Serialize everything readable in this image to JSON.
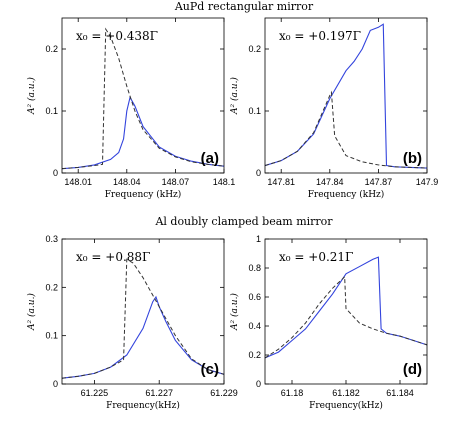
{
  "section_titles": {
    "top": "AuPd rectangular mirror",
    "bottom": "Al doubly clamped beam mirror"
  },
  "chart_data": [
    {
      "id": "a",
      "type": "line",
      "panel_label": "(a)",
      "annotation": "x₀ = +0.438Γ",
      "xlabel": "Frequency (kHz)",
      "ylabel": "A² (a.u.)",
      "xlim": [
        148.0,
        148.1
      ],
      "ylim": [
        0,
        0.25
      ],
      "xticks": [
        148.01,
        148.04,
        148.07,
        148.1
      ],
      "xtick_labels": [
        "148.01",
        "148.04",
        "148.07",
        "148.1"
      ],
      "yticks": [
        0,
        0.1,
        0.2
      ],
      "ytick_labels": [
        "0",
        "0.1",
        "0.2"
      ],
      "series": [
        {
          "style": "solid",
          "color": "#3344dd",
          "x": [
            148.0,
            148.01,
            148.02,
            148.03,
            148.035,
            148.038,
            148.04,
            148.042,
            148.045,
            148.05,
            148.06,
            148.07,
            148.08,
            148.09,
            148.1
          ],
          "y": [
            0.007,
            0.009,
            0.013,
            0.022,
            0.033,
            0.055,
            0.1,
            0.122,
            0.108,
            0.075,
            0.042,
            0.027,
            0.019,
            0.014,
            0.011
          ]
        },
        {
          "style": "dashed",
          "color": "#333333",
          "x": [
            148.0,
            148.01,
            148.02,
            148.025,
            148.027,
            148.03,
            148.035,
            148.04,
            148.045,
            148.05,
            148.06,
            148.07,
            148.08,
            148.09,
            148.1
          ],
          "y": [
            0.007,
            0.009,
            0.012,
            0.014,
            0.232,
            0.22,
            0.185,
            0.14,
            0.1,
            0.07,
            0.04,
            0.026,
            0.018,
            0.014,
            0.011
          ]
        }
      ]
    },
    {
      "id": "b",
      "type": "line",
      "panel_label": "(b)",
      "annotation": "x₀ = +0.197Γ",
      "xlabel": "Frequency (kHz)",
      "ylabel": "A² (a.u.)",
      "xlim": [
        147.8,
        147.9
      ],
      "ylim": [
        0,
        0.25
      ],
      "xticks": [
        147.81,
        147.84,
        147.87,
        147.9
      ],
      "xtick_labels": [
        "147.81",
        "147.84",
        "147.87",
        "147.9"
      ],
      "yticks": [
        0,
        0.1,
        0.2
      ],
      "ytick_labels": [
        "0",
        "0.1",
        "0.2"
      ],
      "series": [
        {
          "style": "solid",
          "color": "#3344dd",
          "x": [
            147.8,
            147.81,
            147.82,
            147.83,
            147.84,
            147.85,
            147.855,
            147.86,
            147.865,
            147.87,
            147.873,
            147.875,
            147.88,
            147.89,
            147.9
          ],
          "y": [
            0.012,
            0.02,
            0.035,
            0.063,
            0.12,
            0.165,
            0.18,
            0.2,
            0.23,
            0.235,
            0.24,
            0.012,
            0.01,
            0.009,
            0.008
          ]
        },
        {
          "style": "dashed",
          "color": "#333333",
          "x": [
            147.8,
            147.81,
            147.82,
            147.83,
            147.84,
            147.841,
            147.843,
            147.85,
            147.86,
            147.87,
            147.88,
            147.9
          ],
          "y": [
            0.012,
            0.02,
            0.035,
            0.065,
            0.125,
            0.13,
            0.06,
            0.028,
            0.018,
            0.013,
            0.01,
            0.008
          ]
        }
      ]
    },
    {
      "id": "c",
      "type": "line",
      "panel_label": "(c)",
      "annotation": "x₀ = +0.88Γ",
      "xlabel": "Frequency(kHz)",
      "ylabel": "A² (a.u.)",
      "xlim": [
        61.224,
        61.229
      ],
      "ylim": [
        0,
        0.3
      ],
      "xticks": [
        61.225,
        61.227,
        61.229
      ],
      "xtick_labels": [
        "61.225",
        "61.227",
        "61.229"
      ],
      "yticks": [
        0,
        0.1,
        0.2,
        0.3
      ],
      "ytick_labels": [
        "0",
        "0.1",
        "0.2",
        "0.3"
      ],
      "series": [
        {
          "style": "solid",
          "color": "#3344dd",
          "x": [
            61.224,
            61.2245,
            61.225,
            61.2255,
            61.226,
            61.2265,
            61.2268,
            61.2269,
            61.227,
            61.2272,
            61.2275,
            61.228,
            61.2285,
            61.229
          ],
          "y": [
            0.012,
            0.016,
            0.022,
            0.035,
            0.06,
            0.115,
            0.17,
            0.18,
            0.16,
            0.13,
            0.09,
            0.05,
            0.03,
            0.02
          ]
        },
        {
          "style": "dashed",
          "color": "#333333",
          "x": [
            61.224,
            61.2245,
            61.225,
            61.2255,
            61.2259,
            61.226,
            61.2262,
            61.2265,
            61.227,
            61.2275,
            61.228,
            61.2285,
            61.229
          ],
          "y": [
            0.012,
            0.016,
            0.022,
            0.035,
            0.05,
            0.258,
            0.25,
            0.22,
            0.16,
            0.1,
            0.052,
            0.03,
            0.02
          ]
        }
      ]
    },
    {
      "id": "d",
      "type": "line",
      "panel_label": "(d)",
      "annotation": "x₀ = +0.21Γ",
      "xlabel": "Frequency(kHz)",
      "ylabel": "A² (a.u.)",
      "xlim": [
        61.179,
        61.185
      ],
      "ylim": [
        0,
        1
      ],
      "xticks": [
        61.18,
        61.182,
        61.184
      ],
      "xtick_labels": [
        "61.18",
        "61.182",
        "61.184"
      ],
      "yticks": [
        0,
        0.2,
        0.4,
        0.6,
        0.8,
        1
      ],
      "ytick_labels": [
        "0",
        "0.2",
        "0.4",
        "0.6",
        "0.8",
        "1"
      ],
      "series": [
        {
          "style": "solid",
          "color": "#3344dd",
          "x": [
            61.179,
            61.1795,
            61.18,
            61.1805,
            61.181,
            61.1815,
            61.182,
            61.1825,
            61.183,
            61.1832,
            61.1833,
            61.1835,
            61.184,
            61.1845,
            61.185
          ],
          "y": [
            0.18,
            0.22,
            0.3,
            0.38,
            0.5,
            0.62,
            0.76,
            0.81,
            0.86,
            0.875,
            0.38,
            0.35,
            0.33,
            0.3,
            0.27
          ]
        },
        {
          "style": "dashed",
          "color": "#333333",
          "x": [
            61.179,
            61.1795,
            61.18,
            61.1805,
            61.181,
            61.1815,
            61.1819,
            61.18195,
            61.182,
            61.1825,
            61.183,
            61.1835,
            61.184,
            61.1845,
            61.185
          ],
          "y": [
            0.18,
            0.24,
            0.32,
            0.42,
            0.55,
            0.66,
            0.73,
            0.74,
            0.52,
            0.42,
            0.38,
            0.35,
            0.33,
            0.3,
            0.27
          ]
        }
      ]
    }
  ]
}
